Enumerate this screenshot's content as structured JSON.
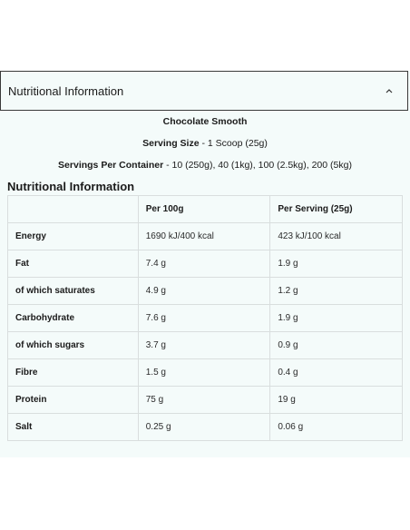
{
  "accordion": {
    "title": "Nutritional Information",
    "icon": "chevron-up-icon",
    "expanded": true
  },
  "product": {
    "flavour": "Chocolate Smooth",
    "serving_size_label": "Serving Size",
    "serving_size_value": " - 1 Scoop (25g)",
    "servings_per_container_label": "Servings Per Container",
    "servings_per_container_value": " - 10 (250g), 40 (1kg), 100 (2.5kg), 200 (5kg)"
  },
  "table": {
    "heading": "Nutritional Information",
    "columns": [
      "",
      "Per 100g",
      "Per Serving (25g)"
    ],
    "rows": [
      {
        "nutrient": "Energy",
        "per_100g": "1690 kJ/400 kcal",
        "per_serving": "423 kJ/100 kcal"
      },
      {
        "nutrient": "Fat",
        "per_100g": "7.4 g",
        "per_serving": "1.9 g"
      },
      {
        "nutrient": "of which saturates",
        "per_100g": "4.9 g",
        "per_serving": "1.2 g"
      },
      {
        "nutrient": "Carbohydrate",
        "per_100g": "7.6 g",
        "per_serving": "1.9 g"
      },
      {
        "nutrient": "of which sugars",
        "per_100g": "3.7 g",
        "per_serving": "0.9 g"
      },
      {
        "nutrient": "Fibre",
        "per_100g": "1.5 g",
        "per_serving": "0.4 g"
      },
      {
        "nutrient": "Protein",
        "per_100g": "75 g",
        "per_serving": "19 g"
      },
      {
        "nutrient": "Salt",
        "per_100g": "0.25 g",
        "per_serving": "0.06 g"
      }
    ]
  },
  "colors": {
    "panel_background": "#f4fbfa",
    "text": "#1b1b1b",
    "border": "#d9dede"
  }
}
